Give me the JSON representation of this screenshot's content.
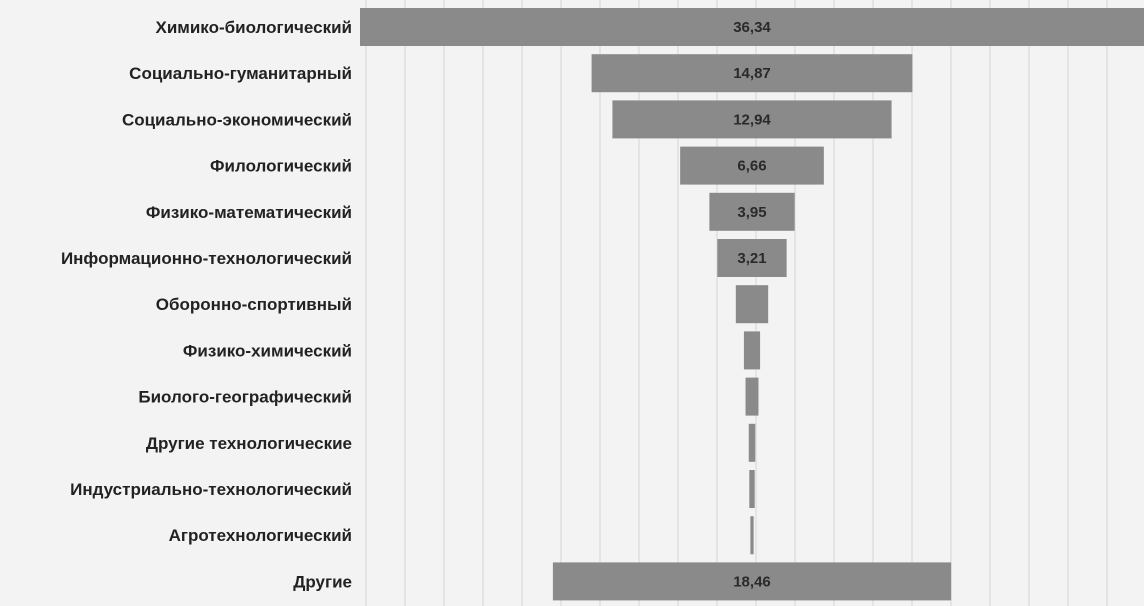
{
  "chart_data": {
    "type": "bar",
    "orientation": "horizontal-funnel",
    "categories": [
      "Химико-биологический",
      "Социально-гуманитарный",
      "Социально-экономический",
      "Филологический",
      "Физико-математический",
      "Информационно-технологический",
      "Оборонно-спортивный",
      "Физико-химический",
      "Биолого-географический",
      "Другие технологические",
      "Индустриально-технологический",
      "Агротехнологический",
      "Другие"
    ],
    "values": [
      36.34,
      14.87,
      12.94,
      6.66,
      3.95,
      3.21,
      1.5,
      0.75,
      0.6,
      0.3,
      0.25,
      0.15,
      18.46
    ],
    "value_labels": [
      "36,34",
      "14,87",
      "12,94",
      "6,66",
      "3,95",
      "3,21",
      "",
      "",
      "",
      "",
      "",
      "",
      "18,46"
    ],
    "bar_color": "#8a8a8a",
    "grid": true
  }
}
